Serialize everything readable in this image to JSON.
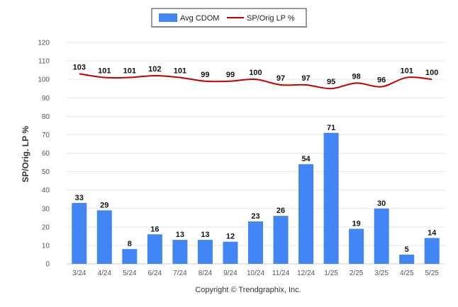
{
  "chart_data": {
    "type": "bar",
    "categories": [
      "3/24",
      "4/24",
      "5/24",
      "6/24",
      "7/24",
      "8/24",
      "9/24",
      "10/24",
      "11/24",
      "12/24",
      "1/25",
      "2/25",
      "3/25",
      "4/25",
      "5/25"
    ],
    "series": [
      {
        "name": "Avg CDOM",
        "type": "bar",
        "color": "#4285f4",
        "values": [
          33,
          29,
          8,
          16,
          13,
          13,
          12,
          23,
          26,
          54,
          71,
          19,
          30,
          5,
          14
        ]
      },
      {
        "name": "SP/Orig LP %",
        "type": "line",
        "color": "#c00000",
        "values": [
          103,
          101,
          101,
          102,
          101,
          99,
          99,
          100,
          97,
          97,
          95,
          98,
          96,
          101,
          100
        ]
      }
    ],
    "ylabel": "SP/Orig. LP %",
    "ylim": [
      0,
      120
    ],
    "yticks": [
      0,
      10,
      20,
      30,
      40,
      50,
      60,
      70,
      80,
      90,
      100,
      110,
      120
    ],
    "grid": true,
    "legend_position": "top-center"
  },
  "legend": {
    "bar_label": "Avg CDOM",
    "line_label": "SP/Orig LP %"
  },
  "footer": "Copyright © Trendgraphix, Inc."
}
